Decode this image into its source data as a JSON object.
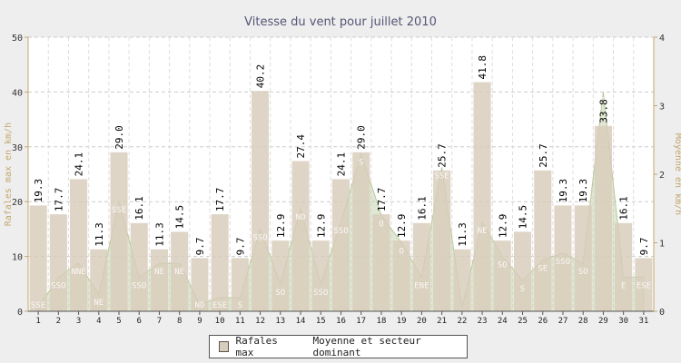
{
  "chart_data": {
    "type": "bar",
    "title": "Vitesse du vent pour juillet 2010",
    "ylabel": "Rafales max en km/h",
    "y2label": "Moyenne en km/h",
    "ylim": [
      0,
      50
    ],
    "y2lim": [
      0,
      4
    ],
    "yticks": [
      "0",
      "10",
      "20",
      "30",
      "40",
      "50"
    ],
    "y2ticks": [
      "0",
      "1",
      "2",
      "3",
      "4"
    ],
    "grid": true,
    "legend_position": "bottom",
    "categories": [
      "1",
      "2",
      "3",
      "4",
      "5",
      "6",
      "7",
      "8",
      "9",
      "10",
      "11",
      "12",
      "13",
      "14",
      "15",
      "16",
      "17",
      "18",
      "19",
      "20",
      "21",
      "22",
      "23",
      "24",
      "25",
      "26",
      "27",
      "28",
      "29",
      "30",
      "31"
    ],
    "series": [
      {
        "name": "Rafales max",
        "type": "bar",
        "axis": "left",
        "color": "#d8ccbb",
        "values": [
          19.3,
          17.7,
          24.1,
          11.3,
          29.0,
          16.1,
          11.3,
          14.5,
          9.7,
          17.7,
          9.7,
          40.2,
          12.9,
          27.4,
          12.9,
          24.1,
          29.0,
          17.7,
          12.9,
          16.1,
          25.7,
          11.3,
          41.8,
          12.9,
          14.5,
          25.7,
          19.3,
          19.3,
          33.8,
          16.1,
          9.7
        ],
        "labels": [
          "19.3",
          "17.7",
          "24.1",
          "11.3",
          "29.0",
          "16.1",
          "11.3",
          "14.5",
          "9.7",
          "17.7",
          "9.7",
          "40.2",
          "12.9",
          "27.4",
          "12.9",
          "24.1",
          "29.0",
          "17.7",
          "12.9",
          "16.1",
          "25.7",
          "11.3",
          "41.8",
          "12.9",
          "14.5",
          "25.7",
          "19.3",
          "19.3",
          "33.8",
          "16.1",
          "9.7"
        ]
      },
      {
        "name": "Moyenne et secteur dominant",
        "type": "area",
        "axis": "right",
        "color": "#c7d4b0",
        "values": [
          0.05,
          0.5,
          0.7,
          0.25,
          1.6,
          0.5,
          0.7,
          0.7,
          0.1,
          0.2,
          0.2,
          1.2,
          0.4,
          1.5,
          0.4,
          1.3,
          2.3,
          1.4,
          1.0,
          0.5,
          2.1,
          0.05,
          1.3,
          0.8,
          0.45,
          0.75,
          0.85,
          0.7,
          3.2,
          0.5,
          0.5
        ],
        "sectors": [
          "SSE",
          "SSO",
          "NNE",
          "NE",
          "SSE",
          "SSO",
          "NE",
          "NE",
          "NO",
          "ESE",
          "S",
          "SSO",
          "SO",
          "NO",
          "SSO",
          "SSO",
          "S",
          "O",
          "O",
          "ENE",
          "SSE",
          "",
          "NE",
          "SO",
          "S",
          "SE",
          "SSO",
          "SO",
          "S",
          "E",
          "ESE"
        ]
      }
    ]
  },
  "colors": {
    "bar": "#d8ccbb",
    "area": "#c7d4b0",
    "left_axis": "#c5a76b",
    "right_axis": "#c5a76b",
    "title": "#555577",
    "grid": "#cccccc"
  }
}
